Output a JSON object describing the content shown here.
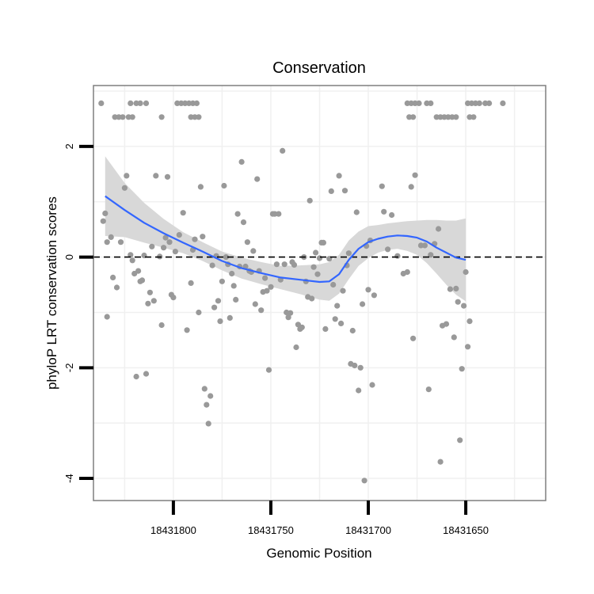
{
  "chart_data": {
    "type": "scatter",
    "title": "Conservation",
    "xlabel": "Genomic Position",
    "ylabel": "phyloP LRT conservation scores",
    "x_reversed": true,
    "xlim": [
      18431841,
      18431609
    ],
    "ylim": [
      -4.4,
      3.1
    ],
    "x_ticks": [
      18431800,
      18431750,
      18431700,
      18431650
    ],
    "y_ticks": [
      -4,
      -2,
      0,
      2
    ],
    "reference_line": {
      "y": 0,
      "style": "dashed",
      "color": "#000000"
    },
    "grid": true,
    "colors": {
      "points": "#999999",
      "smooth": "#3366ff",
      "ribbon": "#d6d6d6",
      "panel_border": "#7f7f7f",
      "grid": "#f0f0f0"
    },
    "points": [
      [
        18431837,
        2.78
      ],
      [
        18431822,
        2.78
      ],
      [
        18431819,
        2.78
      ],
      [
        18431817,
        2.78
      ],
      [
        18431814,
        2.78
      ],
      [
        18431830,
        2.53
      ],
      [
        18431828,
        2.53
      ],
      [
        18431826,
        2.53
      ],
      [
        18431823,
        2.53
      ],
      [
        18431821,
        2.53
      ],
      [
        18431806,
        2.53
      ],
      [
        18431798,
        2.78
      ],
      [
        18431796,
        2.78
      ],
      [
        18431794,
        2.78
      ],
      [
        18431792,
        2.78
      ],
      [
        18431790,
        2.78
      ],
      [
        18431788,
        2.78
      ],
      [
        18431791,
        2.53
      ],
      [
        18431789,
        2.53
      ],
      [
        18431787,
        2.53
      ],
      [
        18431680,
        2.78
      ],
      [
        18431678,
        2.78
      ],
      [
        18431676,
        2.78
      ],
      [
        18431674,
        2.78
      ],
      [
        18431670,
        2.78
      ],
      [
        18431668,
        2.78
      ],
      [
        18431679,
        2.53
      ],
      [
        18431677,
        2.53
      ],
      [
        18431665,
        2.53
      ],
      [
        18431663,
        2.53
      ],
      [
        18431661,
        2.53
      ],
      [
        18431659,
        2.53
      ],
      [
        18431657,
        2.53
      ],
      [
        18431655,
        2.53
      ],
      [
        18431648,
        2.53
      ],
      [
        18431646,
        2.53
      ],
      [
        18431649,
        2.78
      ],
      [
        18431647,
        2.78
      ],
      [
        18431645,
        2.78
      ],
      [
        18431643,
        2.78
      ],
      [
        18431640,
        2.78
      ],
      [
        18431638,
        2.78
      ],
      [
        18431631,
        2.78
      ],
      [
        18431836,
        0.65
      ],
      [
        18431835,
        0.79
      ],
      [
        18431834,
        0.27
      ],
      [
        18431832,
        0.36
      ],
      [
        18431834,
        -1.08
      ],
      [
        18431831,
        -0.37
      ],
      [
        18431829,
        -0.55
      ],
      [
        18431827,
        0.27
      ],
      [
        18431825,
        1.25
      ],
      [
        18431824,
        1.47
      ],
      [
        18431822,
        0.04
      ],
      [
        18431821,
        -0.06
      ],
      [
        18431820,
        -0.3
      ],
      [
        18431819,
        -2.16
      ],
      [
        18431818,
        -0.25
      ],
      [
        18431817,
        -0.44
      ],
      [
        18431816,
        -0.42
      ],
      [
        18431815,
        0.03
      ],
      [
        18431814,
        -2.11
      ],
      [
        18431813,
        -0.84
      ],
      [
        18431812,
        -0.64
      ],
      [
        18431811,
        0.19
      ],
      [
        18431810,
        -0.79
      ],
      [
        18431809,
        1.47
      ],
      [
        18431807,
        0.01
      ],
      [
        18431806,
        -1.23
      ],
      [
        18431805,
        0.17
      ],
      [
        18431804,
        0.35
      ],
      [
        18431803,
        1.45
      ],
      [
        18431802,
        0.27
      ],
      [
        18431801,
        -0.68
      ],
      [
        18431800,
        -0.73
      ],
      [
        18431799,
        0.1
      ],
      [
        18431797,
        0.4
      ],
      [
        18431795,
        0.8
      ],
      [
        18431793,
        -1.32
      ],
      [
        18431791,
        -0.47
      ],
      [
        18431790,
        0.13
      ],
      [
        18431789,
        0.32
      ],
      [
        18431787,
        -1.0
      ],
      [
        18431786,
        1.27
      ],
      [
        18431785,
        0.37
      ],
      [
        18431784,
        -2.38
      ],
      [
        18431783,
        -2.67
      ],
      [
        18431782,
        -3.01
      ],
      [
        18431781,
        -2.51
      ],
      [
        18431780,
        -0.15
      ],
      [
        18431779,
        -0.91
      ],
      [
        18431778,
        0.02
      ],
      [
        18431777,
        -0.79
      ],
      [
        18431776,
        -1.16
      ],
      [
        18431775,
        -0.44
      ],
      [
        18431774,
        1.29
      ],
      [
        18431773,
        0.0
      ],
      [
        18431772,
        -0.13
      ],
      [
        18431771,
        -1.1
      ],
      [
        18431770,
        -0.3
      ],
      [
        18431769,
        -0.52
      ],
      [
        18431768,
        -0.77
      ],
      [
        18431767,
        0.78
      ],
      [
        18431766,
        -0.17
      ],
      [
        18431765,
        1.72
      ],
      [
        18431764,
        0.63
      ],
      [
        18431763,
        -0.17
      ],
      [
        18431762,
        0.27
      ],
      [
        18431761,
        -0.25
      ],
      [
        18431760,
        -0.27
      ],
      [
        18431759,
        0.11
      ],
      [
        18431758,
        -0.85
      ],
      [
        18431757,
        1.41
      ],
      [
        18431756,
        -0.25
      ],
      [
        18431755,
        -0.96
      ],
      [
        18431754,
        -0.63
      ],
      [
        18431753,
        -0.38
      ],
      [
        18431752,
        -0.61
      ],
      [
        18431751,
        -2.04
      ],
      [
        18431750,
        -0.54
      ],
      [
        18431749,
        0.78
      ],
      [
        18431748,
        0.78
      ],
      [
        18431747,
        -0.13
      ],
      [
        18431746,
        0.78
      ],
      [
        18431745,
        -0.41
      ],
      [
        18431744,
        1.92
      ],
      [
        18431743,
        -0.13
      ],
      [
        18431742,
        -1.0
      ],
      [
        18431741,
        -1.09
      ],
      [
        18431740,
        -1.01
      ],
      [
        18431739,
        -0.09
      ],
      [
        18431738,
        -0.14
      ],
      [
        18431737,
        -1.63
      ],
      [
        18431736,
        -1.22
      ],
      [
        18431735,
        -1.3
      ],
      [
        18431734,
        -1.27
      ],
      [
        18431733,
        0.0
      ],
      [
        18431732,
        -0.44
      ],
      [
        18431731,
        -0.72
      ],
      [
        18431730,
        1.02
      ],
      [
        18431729,
        -0.75
      ],
      [
        18431728,
        -0.18
      ],
      [
        18431727,
        0.08
      ],
      [
        18431726,
        -0.31
      ],
      [
        18431725,
        -0.02
      ],
      [
        18431724,
        0.26
      ],
      [
        18431723,
        0.26
      ],
      [
        18431722,
        -1.3
      ],
      [
        18431720,
        -0.03
      ],
      [
        18431719,
        1.19
      ],
      [
        18431718,
        -0.5
      ],
      [
        18431717,
        -1.12
      ],
      [
        18431716,
        -0.88
      ],
      [
        18431715,
        1.47
      ],
      [
        18431714,
        -1.2
      ],
      [
        18431713,
        -0.61
      ],
      [
        18431712,
        1.2
      ],
      [
        18431711,
        -0.15
      ],
      [
        18431710,
        0.07
      ],
      [
        18431709,
        -1.93
      ],
      [
        18431708,
        -1.33
      ],
      [
        18431707,
        -1.96
      ],
      [
        18431706,
        0.81
      ],
      [
        18431705,
        -2.41
      ],
      [
        18431704,
        -2.0
      ],
      [
        18431703,
        -0.85
      ],
      [
        18431702,
        -4.04
      ],
      [
        18431701,
        0.2
      ],
      [
        18431700,
        -0.59
      ],
      [
        18431699,
        0.3
      ],
      [
        18431698,
        -2.31
      ],
      [
        18431697,
        -0.69
      ],
      [
        18431693,
        1.28
      ],
      [
        18431692,
        0.82
      ],
      [
        18431690,
        0.14
      ],
      [
        18431688,
        0.76
      ],
      [
        18431685,
        0.02
      ],
      [
        18431682,
        -0.3
      ],
      [
        18431680,
        -0.27
      ],
      [
        18431678,
        1.27
      ],
      [
        18431677,
        -1.47
      ],
      [
        18431676,
        1.48
      ],
      [
        18431673,
        0.21
      ],
      [
        18431671,
        0.21
      ],
      [
        18431669,
        -2.39
      ],
      [
        18431668,
        0.04
      ],
      [
        18431666,
        0.24
      ],
      [
        18431664,
        0.51
      ],
      [
        18431663,
        -3.7
      ],
      [
        18431662,
        -1.24
      ],
      [
        18431660,
        -1.21
      ],
      [
        18431658,
        -0.58
      ],
      [
        18431656,
        -1.45
      ],
      [
        18431655,
        -0.57
      ],
      [
        18431654,
        -0.81
      ],
      [
        18431653,
        -3.31
      ],
      [
        18431652,
        -2.02
      ],
      [
        18431651,
        -0.88
      ],
      [
        18431650,
        -0.27
      ],
      [
        18431649,
        -1.62
      ],
      [
        18431648,
        -1.16
      ]
    ],
    "smooth": {
      "x": [
        18431835,
        18431825,
        18431815,
        18431805,
        18431795,
        18431785,
        18431775,
        18431765,
        18431755,
        18431745,
        18431735,
        18431725,
        18431720,
        18431715,
        18431710,
        18431705,
        18431700,
        18431695,
        18431690,
        18431685,
        18431680,
        18431675,
        18431670,
        18431665,
        18431660,
        18431655,
        18431650
      ],
      "y": [
        1.1,
        0.85,
        0.62,
        0.43,
        0.26,
        0.1,
        -0.07,
        -0.2,
        -0.29,
        -0.37,
        -0.41,
        -0.45,
        -0.44,
        -0.31,
        -0.05,
        0.15,
        0.27,
        0.33,
        0.37,
        0.39,
        0.38,
        0.35,
        0.28,
        0.17,
        0.08,
        -0.01,
        -0.05
      ],
      "lower": [
        0.38,
        0.36,
        0.26,
        0.17,
        0.07,
        -0.07,
        -0.24,
        -0.39,
        -0.49,
        -0.58,
        -0.67,
        -0.77,
        -0.79,
        -0.66,
        -0.4,
        -0.16,
        -0.02,
        0.08,
        0.13,
        0.15,
        0.11,
        0.04,
        -0.11,
        -0.3,
        -0.5,
        -0.68,
        -0.8
      ],
      "upper": [
        1.82,
        1.34,
        0.98,
        0.69,
        0.45,
        0.27,
        0.1,
        -0.01,
        -0.09,
        -0.16,
        -0.15,
        -0.13,
        -0.09,
        0.04,
        0.3,
        0.46,
        0.56,
        0.58,
        0.61,
        0.63,
        0.65,
        0.66,
        0.67,
        0.67,
        0.66,
        0.66,
        0.7
      ]
    }
  }
}
